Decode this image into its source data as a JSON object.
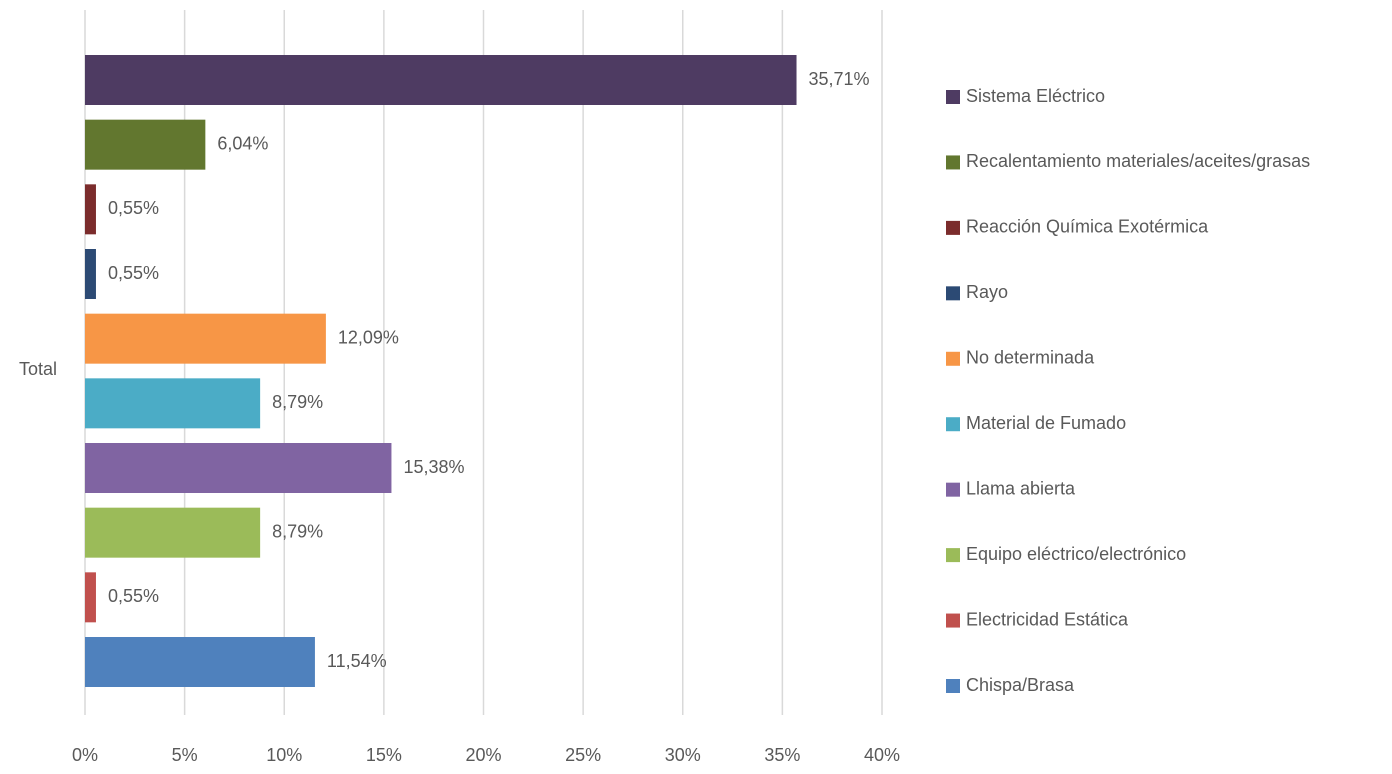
{
  "chart_data": {
    "type": "bar",
    "orientation": "horizontal",
    "categories": [
      "Total"
    ],
    "series": [
      {
        "name": "Sistema Eléctrico",
        "color": "#4e3b62",
        "values": [
          35.71
        ],
        "value_labels": [
          "35,71%"
        ]
      },
      {
        "name": "Recalentamiento materiales/aceites/grasas",
        "color": "#62772f",
        "values": [
          6.04
        ],
        "value_labels": [
          "6,04%"
        ]
      },
      {
        "name": "Reacción Química Exotérmica",
        "color": "#7b2c2c",
        "values": [
          0.55
        ],
        "value_labels": [
          "0,55%"
        ]
      },
      {
        "name": "Rayo",
        "color": "#2c4a74",
        "values": [
          0.55
        ],
        "value_labels": [
          "0,55%"
        ]
      },
      {
        "name": "No determinada",
        "color": "#f79646",
        "values": [
          12.09
        ],
        "value_labels": [
          "12,09%"
        ]
      },
      {
        "name": "Material de Fumado",
        "color": "#4bacc6",
        "values": [
          8.79
        ],
        "value_labels": [
          "8,79%"
        ]
      },
      {
        "name": "Llama abierta",
        "color": "#8064a2",
        "values": [
          15.38
        ],
        "value_labels": [
          "15,38%"
        ]
      },
      {
        "name": "Equipo eléctrico/electrónico",
        "color": "#9bbb59",
        "values": [
          8.79
        ],
        "value_labels": [
          "8,79%"
        ]
      },
      {
        "name": "Electricidad Estática",
        "color": "#c0504d",
        "values": [
          0.55
        ],
        "value_labels": [
          "0,55%"
        ]
      },
      {
        "name": "Chispa/Brasa",
        "color": "#4f81bd",
        "values": [
          11.54
        ],
        "value_labels": [
          "11,54%"
        ]
      }
    ],
    "xlim": [
      0,
      40
    ],
    "xticks": [
      {
        "value": 0,
        "label": "0%"
      },
      {
        "value": 5,
        "label": "5%"
      },
      {
        "value": 10,
        "label": "10%"
      },
      {
        "value": 15,
        "label": "15%"
      },
      {
        "value": 20,
        "label": "20%"
      },
      {
        "value": 25,
        "label": "25%"
      },
      {
        "value": 30,
        "label": "30%"
      },
      {
        "value": 35,
        "label": "35%"
      },
      {
        "value": 40,
        "label": "40%"
      }
    ],
    "grid": true,
    "legend": "right"
  }
}
